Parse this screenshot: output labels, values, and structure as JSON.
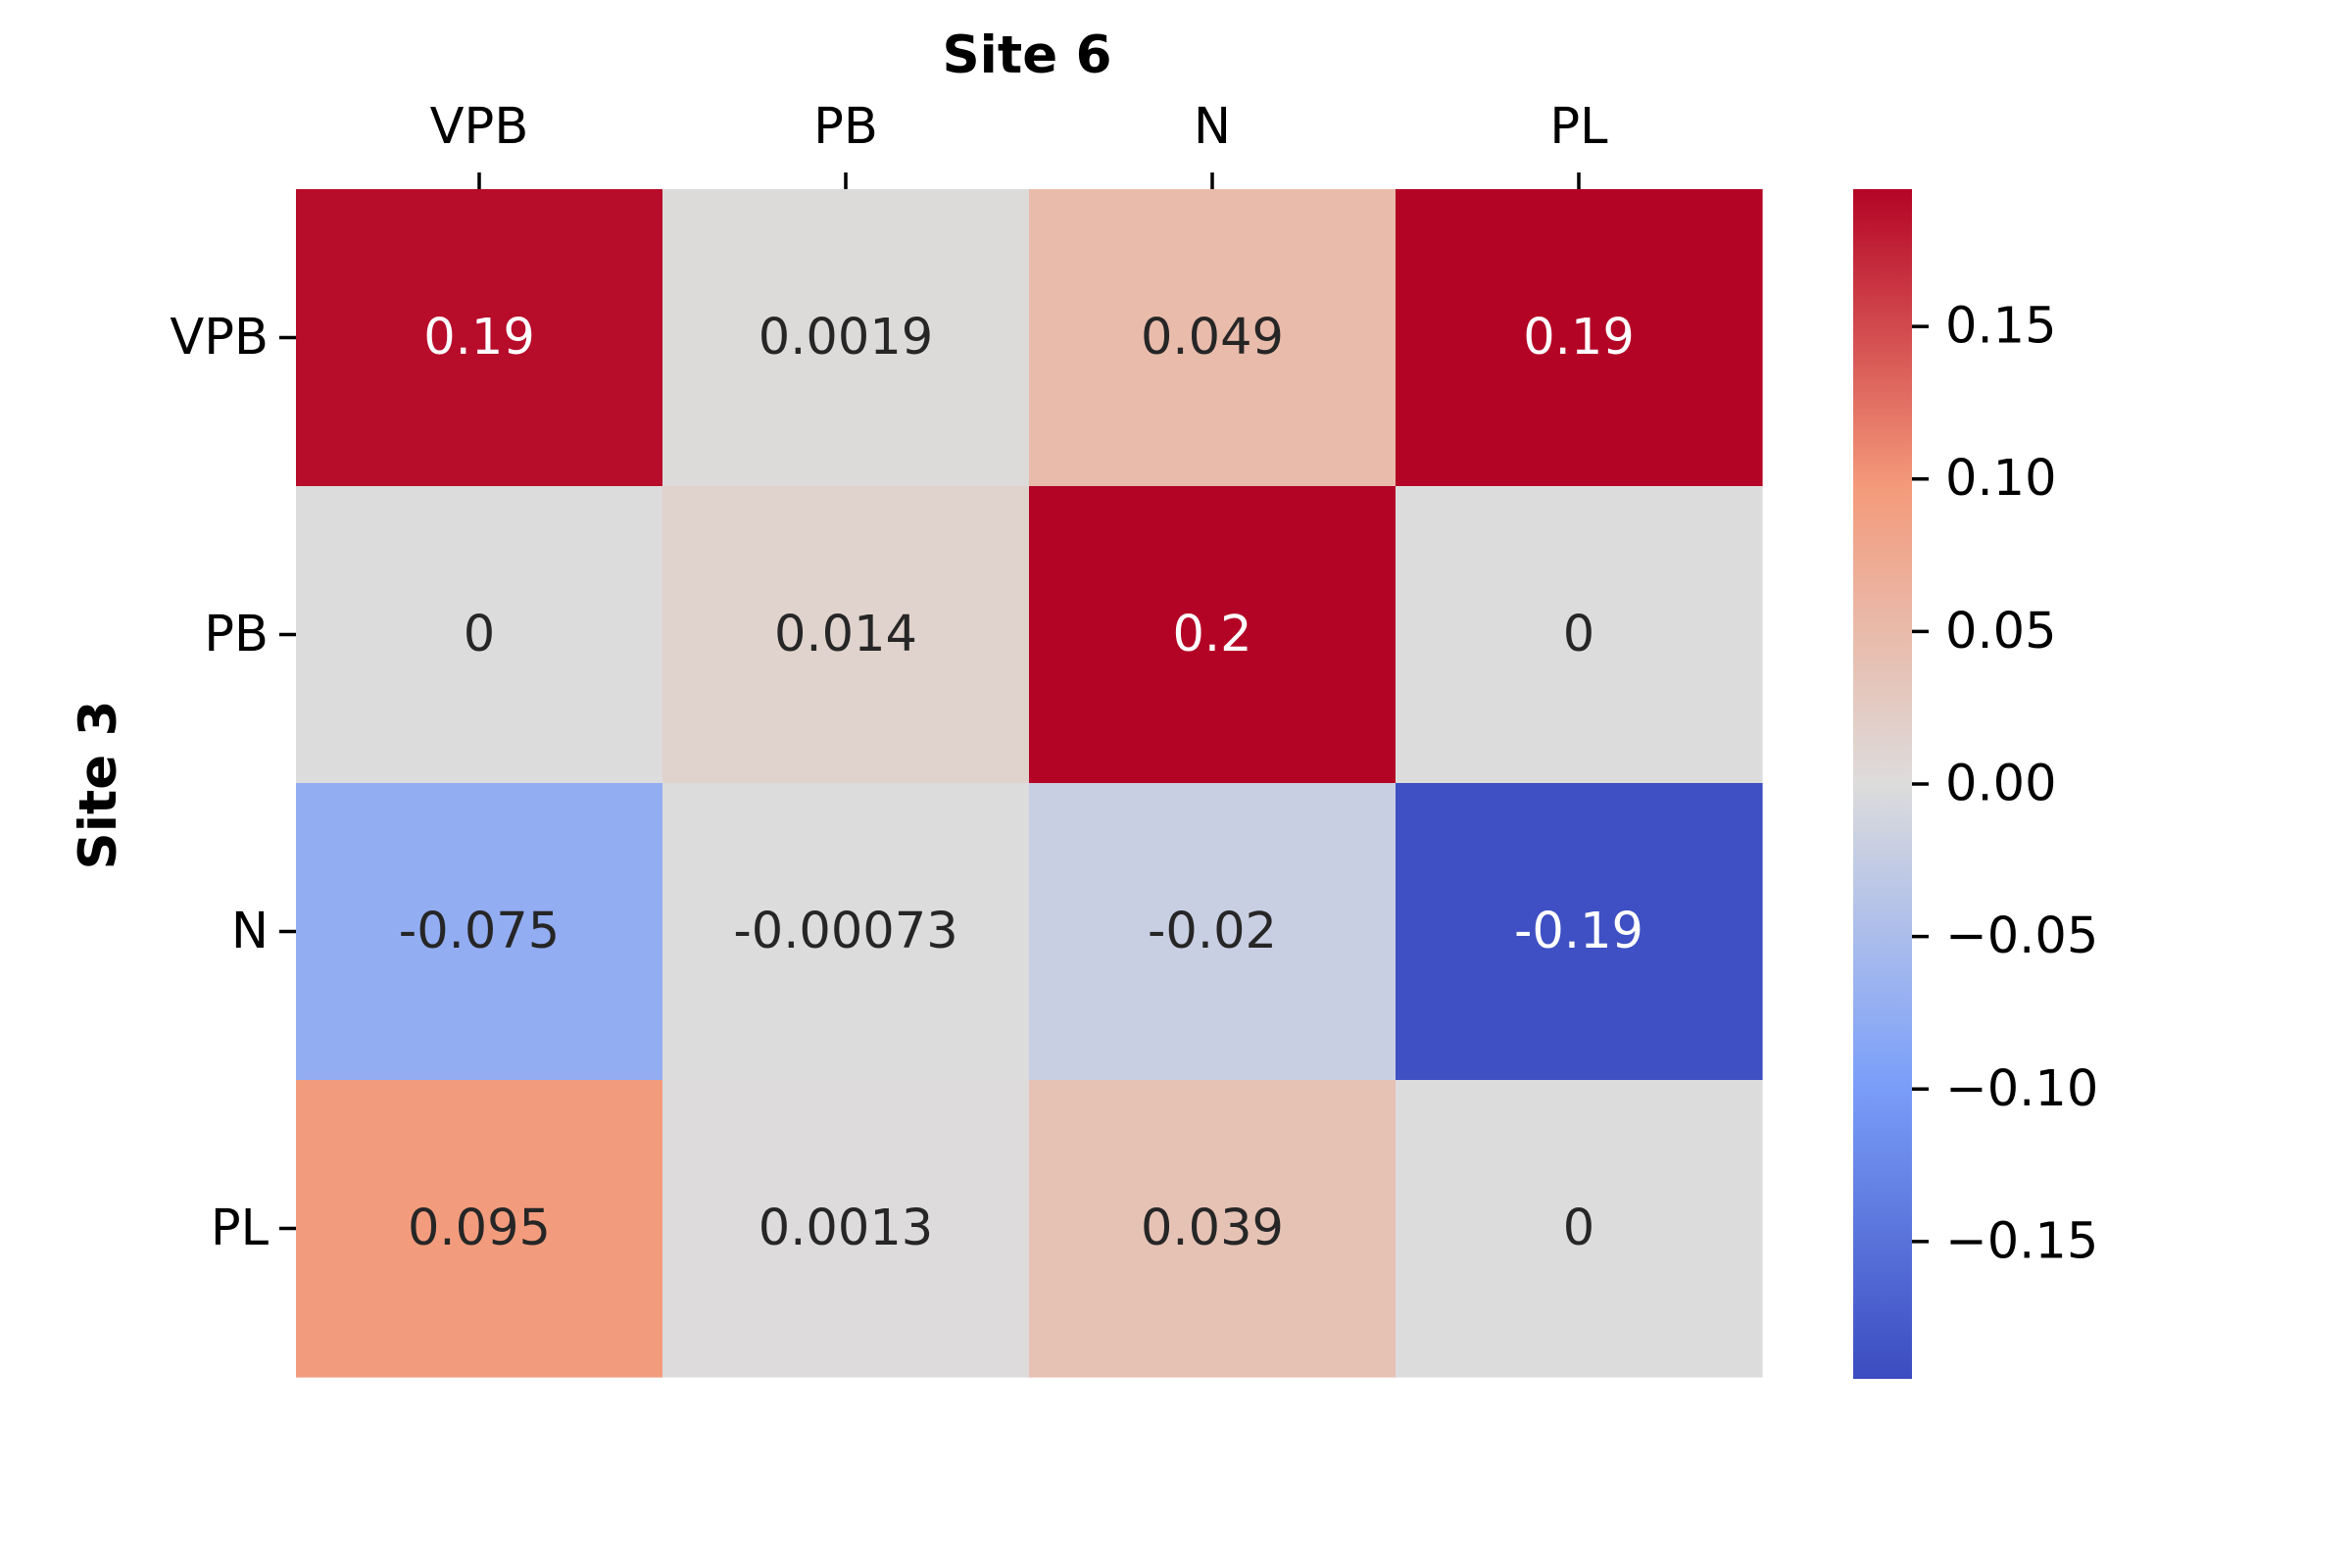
{
  "chart_data": {
    "type": "heatmap",
    "title": "",
    "xlabel": "Site 6",
    "ylabel": "Site 3",
    "x_categories": [
      "VPB",
      "PB",
      "N",
      "PL"
    ],
    "y_categories": [
      "VPB",
      "PB",
      "N",
      "PL"
    ],
    "cells": [
      {
        "label": "0.19",
        "value": 0.19
      },
      {
        "label": "0.0019",
        "value": 0.0019
      },
      {
        "label": "0.049",
        "value": 0.049
      },
      {
        "label": "0.19",
        "value": 0.195
      },
      {
        "label": "0",
        "value": 0
      },
      {
        "label": "0.014",
        "value": 0.014
      },
      {
        "label": "0.2",
        "value": 0.2
      },
      {
        "label": "0",
        "value": 0
      },
      {
        "label": "-0.075",
        "value": -0.075
      },
      {
        "label": "-0.00073",
        "value": -0.00073
      },
      {
        "label": "-0.02",
        "value": -0.02
      },
      {
        "label": "-0.19",
        "value": -0.19
      },
      {
        "label": "0.095",
        "value": 0.095
      },
      {
        "label": "0.0013",
        "value": 0.0013
      },
      {
        "label": "0.039",
        "value": 0.039
      },
      {
        "label": "0",
        "value": 0
      }
    ],
    "colormap": "coolwarm",
    "colorbar": {
      "range": [
        -0.195,
        0.195
      ],
      "ticks": [
        {
          "label": "0.15",
          "value": 0.15
        },
        {
          "label": "0.10",
          "value": 0.1
        },
        {
          "label": "0.05",
          "value": 0.05
        },
        {
          "label": "0.00",
          "value": 0.0
        },
        {
          "label": "−0.05",
          "value": -0.05
        },
        {
          "label": "−0.10",
          "value": -0.1
        },
        {
          "label": "−0.15",
          "value": -0.15
        }
      ],
      "stops": [
        {
          "t": 0.0,
          "color": "#3b4cc0"
        },
        {
          "t": 0.25,
          "color": "#7b9ff9"
        },
        {
          "t": 0.5,
          "color": "#dddcdc"
        },
        {
          "t": 0.75,
          "color": "#f49a7b"
        },
        {
          "t": 1.0,
          "color": "#b40426"
        }
      ]
    },
    "x_axis_position": "top",
    "grid": false
  }
}
